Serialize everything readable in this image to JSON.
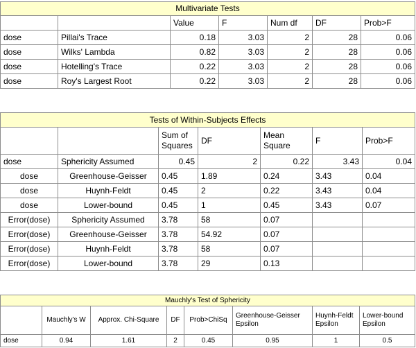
{
  "tables": [
    {
      "title": "Multivariate Tests",
      "header": [
        null,
        null,
        "Value",
        "F",
        "Num df",
        "DF",
        "Prob>F"
      ],
      "rows": [
        [
          "dose",
          "Pillai's Trace",
          0.18,
          3.03,
          2,
          28,
          0.06
        ],
        [
          "dose",
          "Wilks' Lambda",
          0.82,
          3.03,
          2,
          28,
          0.06
        ],
        [
          "dose",
          "Hotelling's Trace",
          0.22,
          3.03,
          2,
          28,
          0.06
        ],
        [
          "dose",
          "Roy's Largest Root",
          0.22,
          3.03,
          2,
          28,
          0.06
        ]
      ]
    },
    {
      "title": "Tests of Within-Subjects Effects",
      "header": [
        null,
        null,
        "Sum of Squares",
        "DF",
        "Mean Square",
        "F",
        "Prob>F"
      ],
      "rows": [
        [
          "dose",
          "Sphericity Assumed",
          0.45,
          2,
          0.22,
          3.43,
          0.04
        ],
        [
          "dose",
          "Greenhouse-Geisser",
          0.45,
          1.89,
          0.24,
          3.43,
          0.04
        ],
        [
          "dose",
          "Huynh-Feldt",
          0.45,
          2,
          0.22,
          3.43,
          0.04
        ],
        [
          "dose",
          "Lower-bound",
          0.45,
          1,
          0.45,
          3.43,
          0.07
        ],
        [
          "Error(dose)",
          "Sphericity Assumed",
          3.78,
          58,
          0.07,
          null,
          null
        ],
        [
          "Error(dose)",
          "Greenhouse-Geisser",
          3.78,
          54.92,
          0.07,
          null,
          null
        ],
        [
          "Error(dose)",
          "Huynh-Feldt",
          3.78,
          58,
          0.07,
          null,
          null
        ],
        [
          "Error(dose)",
          "Lower-bound",
          3.78,
          29,
          0.13,
          null,
          null
        ]
      ]
    },
    {
      "title": "Mauchly's Test of Sphericity",
      "header": [
        null,
        "Mauchly's W",
        "Approx. Chi-Square",
        "DF",
        "Prob>ChiSq",
        "Greenhouse-Geisser Epsilon",
        "Huynh-Feldt Epsilon",
        "Lower-bound Epsilon"
      ],
      "rows": [
        [
          "dose",
          0.94,
          1.61,
          2,
          0.45,
          0.95,
          1,
          0.5
        ]
      ]
    }
  ]
}
